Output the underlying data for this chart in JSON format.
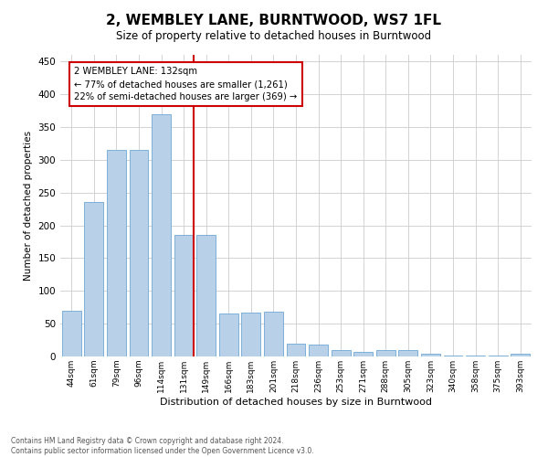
{
  "title": "2, WEMBLEY LANE, BURNTWOOD, WS7 1FL",
  "subtitle": "Size of property relative to detached houses in Burntwood",
  "xlabel": "Distribution of detached houses by size in Burntwood",
  "ylabel": "Number of detached properties",
  "categories": [
    "44sqm",
    "61sqm",
    "79sqm",
    "96sqm",
    "114sqm",
    "131sqm",
    "149sqm",
    "166sqm",
    "183sqm",
    "201sqm",
    "218sqm",
    "236sqm",
    "253sqm",
    "271sqm",
    "288sqm",
    "305sqm",
    "323sqm",
    "340sqm",
    "358sqm",
    "375sqm",
    "393sqm"
  ],
  "values": [
    70,
    235,
    315,
    315,
    370,
    185,
    185,
    65,
    67,
    68,
    20,
    18,
    10,
    7,
    10,
    10,
    4,
    2,
    2,
    2,
    4
  ],
  "bar_color": "#b8d0e8",
  "bar_edge_color": "#6fa8d4",
  "marker_label": "2 WEMBLEY LANE: 132sqm",
  "annotation_line1": "← 77% of detached houses are smaller (1,261)",
  "annotation_line2": "22% of semi-detached houses are larger (369) →",
  "vline_color": "#cc0000",
  "annotation_box_color": "#ffffff",
  "annotation_box_edge": "#cc0000",
  "footer_line1": "Contains HM Land Registry data © Crown copyright and database right 2024.",
  "footer_line2": "Contains public sector information licensed under the Open Government Licence v3.0.",
  "background_color": "#ffffff",
  "ylim": [
    0,
    460
  ],
  "grid_color": "#cccccc",
  "vline_index": 5.42
}
